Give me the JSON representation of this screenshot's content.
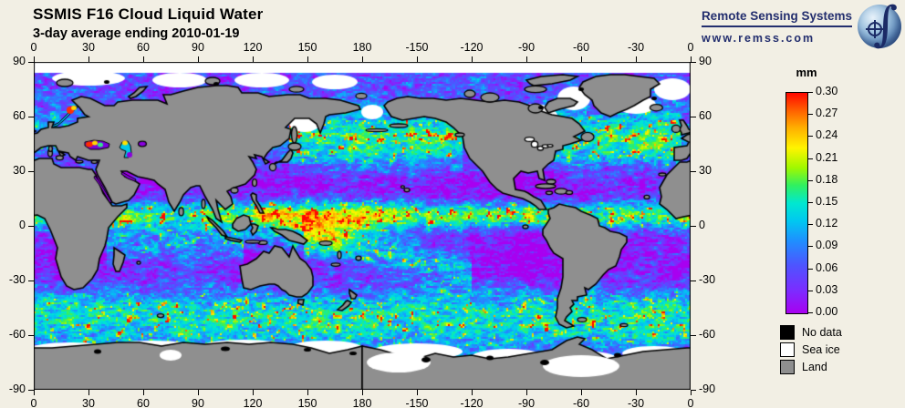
{
  "header": {
    "title": "SSMIS F16 Cloud Liquid Water",
    "subtitle": "3-day average ending 2010-01-19"
  },
  "logo": {
    "name": "Remote Sensing Systems",
    "url": "www.remss.com",
    "color": "#232e6e"
  },
  "axes": {
    "lon_ticks": [
      "0",
      "30",
      "60",
      "90",
      "120",
      "150",
      "180",
      "-150",
      "-120",
      "-90",
      "-60",
      "-30",
      "0"
    ],
    "lat_ticks": [
      "90",
      "60",
      "30",
      "0",
      "-30",
      "-60",
      "-90"
    ]
  },
  "colorbar": {
    "unit": "mm",
    "ticks": [
      "0.30",
      "0.27",
      "0.24",
      "0.21",
      "0.18",
      "0.15",
      "0.12",
      "0.09",
      "0.06",
      "0.03",
      "0.00"
    ]
  },
  "legend": {
    "items": [
      {
        "label": "No data",
        "color": "#000000"
      },
      {
        "label": "Sea ice",
        "color": "#ffffff"
      },
      {
        "label": "Land",
        "color": "#8f8f8f"
      }
    ]
  },
  "chart_data": {
    "type": "heatmap",
    "title": "SSMIS F16 Cloud Liquid Water",
    "subtitle": "3-day average ending 2010-01-19",
    "variable": "cloud liquid water",
    "units": "mm",
    "projection": "equirectangular global map, longitude 0→360 (labeled 0,30,...,180,-150,...,0), latitude 90→-90",
    "lon_tick_values": [
      0,
      30,
      60,
      90,
      120,
      150,
      180,
      -150,
      -120,
      -90,
      -60,
      -30,
      0
    ],
    "lat_tick_values": [
      90,
      60,
      30,
      0,
      -30,
      -60,
      -90
    ],
    "value_range_mm": [
      0.0,
      0.3
    ],
    "colorbar_tick_values": [
      0.3,
      0.27,
      0.24,
      0.21,
      0.18,
      0.15,
      0.12,
      0.09,
      0.06,
      0.03,
      0.0
    ],
    "colorscale": [
      {
        "value": 0.0,
        "color": "#a800f0"
      },
      {
        "value": 0.03,
        "color": "#7d2bff"
      },
      {
        "value": 0.066,
        "color": "#4d55ff"
      },
      {
        "value": 0.099,
        "color": "#1e90ff"
      },
      {
        "value": 0.126,
        "color": "#00c8f0"
      },
      {
        "value": 0.15,
        "color": "#00e8d0"
      },
      {
        "value": 0.174,
        "color": "#30f060"
      },
      {
        "value": 0.198,
        "color": "#a0f800"
      },
      {
        "value": 0.225,
        "color": "#fff400"
      },
      {
        "value": 0.252,
        "color": "#ffb000"
      },
      {
        "value": 0.276,
        "color": "#ff6000"
      },
      {
        "value": 0.3,
        "color": "#ff0800"
      }
    ],
    "mask_classes": [
      {
        "label": "No data",
        "color": "#000000",
        "where": "coastal fringe and swath gaps"
      },
      {
        "label": "Sea ice",
        "color": "#ffffff",
        "where": "Arctic ocean, Hudson Bay, Okhotsk, Antarctic fringe, Ross and Weddell seas"
      },
      {
        "label": "Land",
        "color": "#8f8f8f",
        "where": "continents"
      }
    ],
    "features": [
      "Saturated red ITCZ band (>0.30 mm) near 5-10N across the Pacific and Atlantic",
      "Very low (violet, ~0.00-0.03 mm) subtropical gyres near 15-30N and 15-30S",
      "Cyan/green/yellow storm-track swirls (0.09-0.21 mm) at 40-60S and in the winter North Pacific / North Atlantic",
      "Red convective clusters over the Indo-Pacific warm pool and SPCZ",
      "Data gaps shown white over sea ice and gray over land, black along coasts"
    ]
  }
}
